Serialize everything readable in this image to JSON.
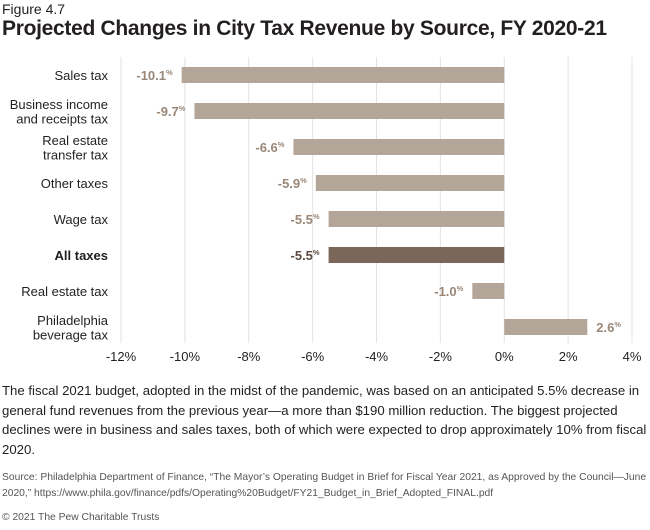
{
  "figure_label": "Figure 4.7",
  "caption": "The fiscal 2021 budget, adopted in the midst of the pandemic, was based on an anticipated 5.5% decrease in general fund revenues from the previous year—a more than $190 million reduction. The biggest projected declines were in business and sales taxes, both of which were expected to drop approximately 10% from fiscal 2020.",
  "source": "Source: Philadelphia Department of Finance, “The Mayor’s Operating Budget in Brief for Fiscal Year 2021, as Approved by the Council—June 2020,” https://www.phila.gov/finance/pdfs/Operating%20Budget/FY21_Budget_in_Brief_Adopted_FINAL.pdf",
  "copyright": "© 2021 The Pew Charitable Trusts",
  "colors": {
    "bar": "#b3a597",
    "highlight_bar": "#7b665a",
    "label": "#9a8777",
    "highlight_label": "#5b4b42",
    "grid": "#e2e2e2",
    "axis_text": "#231f20"
  },
  "chart_data": {
    "type": "bar",
    "orientation": "horizontal",
    "title": "Projected Changes in City Tax Revenue by Source, FY 2020-21",
    "categories": [
      [
        "Sales tax"
      ],
      [
        "Business income",
        "and receipts tax"
      ],
      [
        "Real estate",
        "transfer tax"
      ],
      [
        "Other taxes"
      ],
      [
        "Wage tax"
      ],
      [
        "All taxes"
      ],
      [
        "Real estate tax"
      ],
      [
        "Philadelphia",
        "beverage tax"
      ]
    ],
    "values": [
      -10.1,
      -9.7,
      -6.6,
      -5.9,
      -5.5,
      -5.5,
      -1.0,
      2.6
    ],
    "value_labels": [
      "-10.1",
      "-9.7",
      "-6.6",
      "-5.9",
      "-5.5",
      "-5.5",
      "-1.0",
      "2.6"
    ],
    "value_unit": "%",
    "highlight_index": 5,
    "xlim": [
      -12,
      4
    ],
    "xticks": [
      -12,
      -10,
      -8,
      -6,
      -4,
      -2,
      0,
      2,
      4
    ],
    "xtick_labels": [
      "-12%",
      "-10%",
      "-8%",
      "-6%",
      "-4%",
      "-2%",
      "0%",
      "2%",
      "4%"
    ],
    "grid": true,
    "xlabel": "",
    "ylabel": ""
  }
}
